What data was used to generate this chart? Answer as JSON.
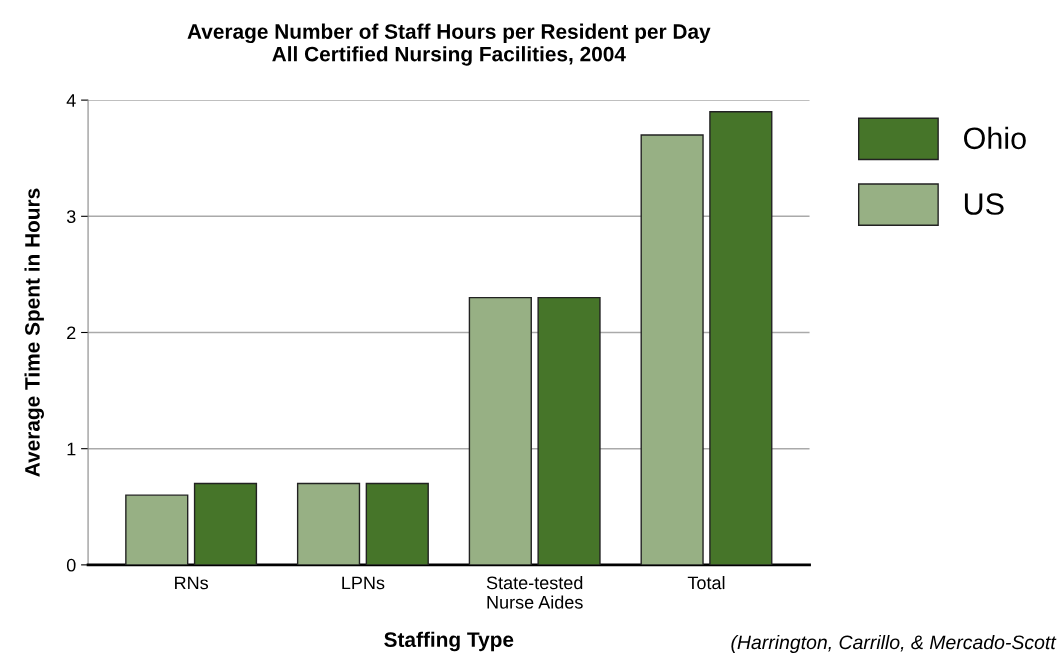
{
  "chart_data": {
    "type": "bar",
    "title": "Average Number of Staff Hours per Resident per Day\nAll Certified Nursing Facilities, 2004",
    "xlabel": "Staffing Type",
    "ylabel": "Average Time Spent in Hours",
    "categories": [
      "RNs",
      "LPNs",
      "State-tested\nNurse Aides",
      "Total"
    ],
    "series": [
      {
        "name": "US",
        "color": "#97b084",
        "values": [
          0.6,
          0.7,
          2.3,
          3.7
        ]
      },
      {
        "name": "Ohio",
        "color": "#467529",
        "values": [
          0.7,
          0.7,
          2.3,
          3.9
        ]
      }
    ],
    "ylim": [
      0,
      4
    ],
    "yticks": [
      0,
      1,
      2,
      3,
      4
    ],
    "grid": "y",
    "legend": "top right",
    "annotations": [
      "(Harrington, Carrillo, & Mercado-Scott"
    ]
  }
}
